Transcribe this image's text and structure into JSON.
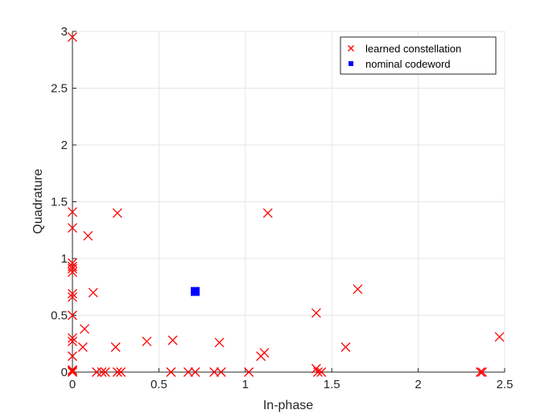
{
  "chart_data": {
    "type": "scatter",
    "title": "",
    "xlabel": "In-phase",
    "ylabel": "Quadrature",
    "xlim": [
      0,
      2.5
    ],
    "ylim": [
      0,
      3
    ],
    "xticks": [
      0,
      0.5,
      1,
      1.5,
      2,
      2.5
    ],
    "yticks": [
      0,
      0.5,
      1,
      1.5,
      2,
      2.5,
      3
    ],
    "xtick_labels": [
      "0",
      "0.5",
      "1",
      "1.5",
      "2",
      "2.5"
    ],
    "ytick_labels": [
      "0",
      "0.5",
      "1",
      "1.5",
      "2",
      "2.5",
      "3"
    ],
    "grid": true,
    "legend_position": "top-right",
    "series": [
      {
        "name": "learned constellation",
        "marker": "x",
        "color": "#ff0000",
        "points": [
          [
            0.0,
            2.95
          ],
          [
            0.0,
            1.41
          ],
          [
            0.0,
            1.27
          ],
          [
            0.0,
            0.96
          ],
          [
            0.0,
            0.93
          ],
          [
            0.0,
            0.91
          ],
          [
            0.0,
            0.88
          ],
          [
            0.0,
            0.69
          ],
          [
            0.0,
            0.66
          ],
          [
            0.0,
            0.5
          ],
          [
            0.0,
            0.3
          ],
          [
            0.0,
            0.27
          ],
          [
            0.0,
            0.14
          ],
          [
            0.0,
            0.02
          ],
          [
            0.0,
            0.01
          ],
          [
            0.0,
            0.0
          ],
          [
            0.06,
            0.22
          ],
          [
            0.07,
            0.38
          ],
          [
            0.09,
            1.2
          ],
          [
            0.12,
            0.7
          ],
          [
            0.14,
            0.0
          ],
          [
            0.17,
            0.0
          ],
          [
            0.19,
            0.0
          ],
          [
            0.25,
            0.22
          ],
          [
            0.26,
            1.4
          ],
          [
            0.26,
            0.0
          ],
          [
            0.28,
            0.0
          ],
          [
            0.43,
            0.27
          ],
          [
            0.57,
            0.0
          ],
          [
            0.58,
            0.28
          ],
          [
            0.67,
            0.0
          ],
          [
            0.71,
            0.0
          ],
          [
            0.82,
            0.0
          ],
          [
            0.85,
            0.26
          ],
          [
            0.86,
            0.0
          ],
          [
            1.02,
            0.0
          ],
          [
            1.09,
            0.14
          ],
          [
            1.11,
            0.17
          ],
          [
            1.13,
            1.4
          ],
          [
            1.41,
            0.52
          ],
          [
            1.41,
            0.03
          ],
          [
            1.42,
            0.0
          ],
          [
            1.44,
            0.0
          ],
          [
            1.58,
            0.22
          ],
          [
            1.65,
            0.73
          ],
          [
            2.36,
            0.0
          ],
          [
            2.37,
            0.0
          ],
          [
            2.47,
            0.31
          ]
        ]
      },
      {
        "name": "nominal codeword",
        "marker": "square",
        "color": "#0000ff",
        "points": [
          [
            0.71,
            0.71
          ]
        ]
      }
    ]
  }
}
